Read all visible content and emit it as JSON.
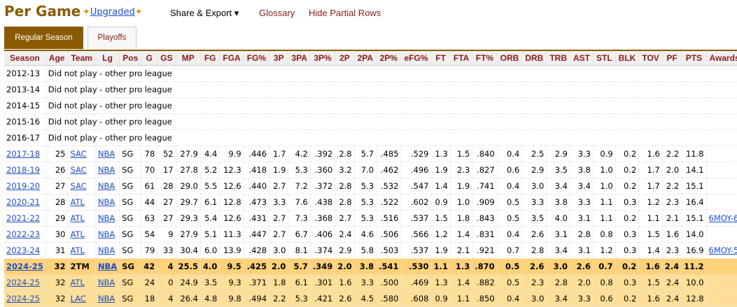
{
  "header": {
    "title": "Per Game",
    "upgraded_label": "Upgraded",
    "share_export_label": "Share & Export ▾",
    "glossary_label": "Glossary",
    "hide_partial_label": "Hide Partial Rows"
  },
  "tabs": [
    {
      "label": "Regular Season",
      "active": true
    },
    {
      "label": "Playoffs",
      "active": false
    }
  ],
  "table": {
    "columns": [
      "Season",
      "Age",
      "Team",
      "Lg",
      "Pos",
      "G",
      "GS",
      "MP",
      "FG",
      "FGA",
      "FG%",
      "3P",
      "3PA",
      "3P%",
      "2P",
      "2PA",
      "2P%",
      "eFG%",
      "FT",
      "FTA",
      "FT%",
      "ORB",
      "DRB",
      "TRB",
      "AST",
      "STL",
      "BLK",
      "TOV",
      "PF",
      "PTS",
      "Awards"
    ],
    "dnp_rows": [
      {
        "season": "2012-13",
        "note": "Did not play - other pro league"
      },
      {
        "season": "2013-14",
        "note": "Did not play - other pro league"
      },
      {
        "season": "2014-15",
        "note": "Did not play - other pro league"
      },
      {
        "season": "2015-16",
        "note": "Did not play - other pro league"
      },
      {
        "season": "2016-17",
        "note": "Did not play - other pro league"
      }
    ],
    "rows": [
      [
        "2017-18",
        "25",
        "SAC",
        "NBA",
        "SG",
        "78",
        "52",
        "27.9",
        "4.4",
        "9.9",
        ".446",
        "1.7",
        "4.2",
        ".392",
        "2.8",
        "5.7",
        ".485",
        ".529",
        "1.3",
        "1.5",
        ".840",
        "0.4",
        "2.5",
        "2.9",
        "3.3",
        "0.9",
        "0.2",
        "1.6",
        "2.2",
        "11.8",
        ""
      ],
      [
        "2018-19",
        "26",
        "SAC",
        "NBA",
        "SG",
        "70",
        "17",
        "27.8",
        "5.2",
        "12.3",
        ".418",
        "1.9",
        "5.3",
        ".360",
        "3.2",
        "7.0",
        ".462",
        ".496",
        "1.9",
        "2.3",
        ".827",
        "0.6",
        "2.9",
        "3.5",
        "3.8",
        "1.0",
        "0.2",
        "1.7",
        "2.0",
        "14.1",
        ""
      ],
      [
        "2019-20",
        "27",
        "SAC",
        "NBA",
        "SG",
        "61",
        "28",
        "29.0",
        "5.5",
        "12.6",
        ".440",
        "2.7",
        "7.2",
        ".372",
        "2.8",
        "5.3",
        ".532",
        ".547",
        "1.4",
        "1.9",
        ".741",
        "0.4",
        "3.0",
        "3.4",
        "3.4",
        "1.0",
        "0.2",
        "1.7",
        "2.2",
        "15.1",
        ""
      ],
      [
        "2020-21",
        "28",
        "ATL",
        "NBA",
        "SG",
        "44",
        "27",
        "29.7",
        "6.1",
        "12.8",
        ".473",
        "3.3",
        "7.6",
        ".438",
        "2.8",
        "5.3",
        ".522",
        ".602",
        "0.9",
        "1.0",
        ".909",
        "0.5",
        "3.3",
        "3.8",
        "3.3",
        "1.1",
        "0.3",
        "1.2",
        "2.3",
        "16.4",
        ""
      ],
      [
        "2021-22",
        "29",
        "ATL",
        "NBA",
        "SG",
        "63",
        "27",
        "29.3",
        "5.4",
        "12.6",
        ".431",
        "2.7",
        "7.3",
        ".368",
        "2.7",
        "5.3",
        ".516",
        ".537",
        "1.5",
        "1.8",
        ".843",
        "0.5",
        "3.5",
        "4.0",
        "3.1",
        "1.1",
        "0.2",
        "1.1",
        "2.1",
        "15.1",
        "6MOY-6"
      ],
      [
        "2022-23",
        "30",
        "ATL",
        "NBA",
        "SG",
        "54",
        "9",
        "27.9",
        "5.1",
        "11.3",
        ".447",
        "2.7",
        "6.7",
        ".406",
        "2.4",
        "4.6",
        ".506",
        ".566",
        "1.2",
        "1.4",
        ".831",
        "0.4",
        "2.6",
        "3.1",
        "2.8",
        "0.8",
        "0.3",
        "1.5",
        "1.6",
        "14.0",
        ""
      ],
      [
        "2023-24",
        "31",
        "ATL",
        "NBA",
        "SG",
        "79",
        "33",
        "30.4",
        "6.0",
        "13.9",
        ".428",
        "3.0",
        "8.1",
        ".374",
        "2.9",
        "5.8",
        ".503",
        ".537",
        "1.9",
        "2.1",
        ".921",
        "0.7",
        "2.8",
        "3.4",
        "3.1",
        "1.2",
        "0.3",
        "1.4",
        "2.3",
        "16.9",
        "6MOY-5"
      ]
    ],
    "highlight_rows": [
      [
        "2024-25",
        "32",
        "2TM",
        "NBA",
        "SG",
        "42",
        "4",
        "25.5",
        "4.0",
        "9.5",
        ".425",
        "2.0",
        "5.7",
        ".349",
        "2.0",
        "3.8",
        ".541",
        ".530",
        "1.1",
        "1.3",
        ".870",
        "0.5",
        "2.6",
        "3.0",
        "2.6",
        "0.7",
        "0.2",
        "1.6",
        "2.4",
        "11.2",
        ""
      ],
      [
        "2024-25",
        "32",
        "ATL",
        "NBA",
        "SG",
        "24",
        "0",
        "24.9",
        "3.5",
        "9.3",
        ".371",
        "1.8",
        "6.1",
        ".301",
        "1.6",
        "3.3",
        ".500",
        ".469",
        "1.3",
        "1.4",
        ".882",
        "0.5",
        "2.3",
        "2.8",
        "2.0",
        "0.8",
        "0.3",
        "1.5",
        "2.4",
        "10.0",
        ""
      ],
      [
        "2024-25",
        "32",
        "LAC",
        "NBA",
        "SG",
        "18",
        "4",
        "26.4",
        "4.8",
        "9.8",
        ".494",
        "2.2",
        "5.3",
        ".421",
        "2.6",
        "4.5",
        ".580",
        ".608",
        "0.9",
        "1.1",
        ".850",
        "0.4",
        "3.0",
        "3.4",
        "3.3",
        "0.6",
        "0.2",
        "1.6",
        "2.4",
        "12.8",
        ""
      ]
    ]
  }
}
